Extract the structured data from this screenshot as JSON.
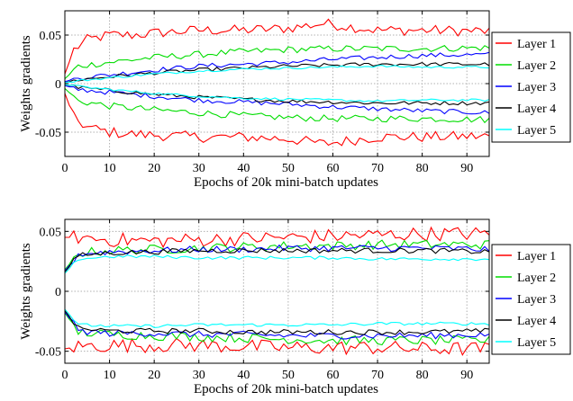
{
  "chart_data": [
    {
      "type": "line",
      "panel": "top",
      "xlabel": "Epochs of 20k mini-batch updates",
      "ylabel": "Weights gradients",
      "xlim": [
        0,
        95
      ],
      "ylim": [
        -0.075,
        0.075
      ],
      "xticks": [
        0,
        10,
        20,
        30,
        40,
        50,
        60,
        70,
        80,
        90
      ],
      "yticks": [
        {
          "v": -0.05,
          "label": "-0.05"
        },
        {
          "v": 0,
          "label": "0"
        },
        {
          "v": 0.05,
          "label": "0.05"
        }
      ],
      "grid": true,
      "legend_position": "right",
      "series": [
        {
          "name": "Layer 1",
          "color": "#ff0000",
          "upper": [
            [
              0,
              0.01
            ],
            [
              2,
              0.035
            ],
            [
              5,
              0.045
            ],
            [
              10,
              0.05
            ],
            [
              15,
              0.05
            ],
            [
              20,
              0.052
            ],
            [
              30,
              0.055
            ],
            [
              40,
              0.055
            ],
            [
              50,
              0.057
            ],
            [
              58,
              0.062
            ],
            [
              70,
              0.055
            ],
            [
              80,
              0.055
            ],
            [
              95,
              0.054
            ]
          ],
          "lower": [
            [
              0,
              -0.01
            ],
            [
              2,
              -0.035
            ],
            [
              5,
              -0.045
            ],
            [
              10,
              -0.05
            ],
            [
              15,
              -0.052
            ],
            [
              20,
              -0.053
            ],
            [
              30,
              -0.055
            ],
            [
              40,
              -0.055
            ],
            [
              50,
              -0.057
            ],
            [
              58,
              -0.062
            ],
            [
              70,
              -0.055
            ],
            [
              80,
              -0.055
            ],
            [
              95,
              -0.054
            ]
          ]
        },
        {
          "name": "Layer 2",
          "color": "#00dd00",
          "upper": [
            [
              0,
              0.005
            ],
            [
              3,
              0.018
            ],
            [
              10,
              0.022
            ],
            [
              20,
              0.027
            ],
            [
              30,
              0.03
            ],
            [
              40,
              0.033
            ],
            [
              50,
              0.035
            ],
            [
              60,
              0.036
            ],
            [
              70,
              0.036
            ],
            [
              80,
              0.036
            ],
            [
              95,
              0.037
            ]
          ],
          "lower": [
            [
              0,
              -0.005
            ],
            [
              3,
              -0.018
            ],
            [
              10,
              -0.023
            ],
            [
              20,
              -0.027
            ],
            [
              30,
              -0.03
            ],
            [
              40,
              -0.033
            ],
            [
              50,
              -0.035
            ],
            [
              60,
              -0.036
            ],
            [
              70,
              -0.036
            ],
            [
              80,
              -0.036
            ],
            [
              95,
              -0.037
            ]
          ]
        },
        {
          "name": "Layer 3",
          "color": "#0000ff",
          "upper": [
            [
              0,
              0.002
            ],
            [
              3,
              0.006
            ],
            [
              10,
              0.009
            ],
            [
              20,
              0.014
            ],
            [
              30,
              0.018
            ],
            [
              40,
              0.02
            ],
            [
              50,
              0.022
            ],
            [
              60,
              0.025
            ],
            [
              70,
              0.027
            ],
            [
              80,
              0.029
            ],
            [
              95,
              0.03
            ]
          ],
          "lower": [
            [
              0,
              -0.002
            ],
            [
              3,
              -0.006
            ],
            [
              10,
              -0.009
            ],
            [
              20,
              -0.013
            ],
            [
              30,
              -0.017
            ],
            [
              40,
              -0.019
            ],
            [
              50,
              -0.021
            ],
            [
              60,
              -0.024
            ],
            [
              70,
              -0.026
            ],
            [
              80,
              -0.028
            ],
            [
              95,
              -0.03
            ]
          ]
        },
        {
          "name": "Layer 4",
          "color": "#000000",
          "upper": [
            [
              0,
              0.001
            ],
            [
              3,
              0.004
            ],
            [
              10,
              0.007
            ],
            [
              20,
              0.011
            ],
            [
              30,
              0.014
            ],
            [
              40,
              0.016
            ],
            [
              50,
              0.018
            ],
            [
              60,
              0.019
            ],
            [
              70,
              0.02
            ],
            [
              80,
              0.02
            ],
            [
              95,
              0.02
            ]
          ],
          "lower": [
            [
              0,
              -0.001
            ],
            [
              3,
              -0.004
            ],
            [
              10,
              -0.007
            ],
            [
              20,
              -0.011
            ],
            [
              30,
              -0.014
            ],
            [
              40,
              -0.016
            ],
            [
              50,
              -0.018
            ],
            [
              60,
              -0.019
            ],
            [
              70,
              -0.02
            ],
            [
              80,
              -0.02
            ],
            [
              95,
              -0.02
            ]
          ]
        },
        {
          "name": "Layer 5",
          "color": "#00ffff",
          "upper": [
            [
              0,
              0.001
            ],
            [
              3,
              0.003
            ],
            [
              10,
              0.006
            ],
            [
              20,
              0.01
            ],
            [
              30,
              0.013
            ],
            [
              40,
              0.015
            ],
            [
              50,
              0.016
            ],
            [
              60,
              0.017
            ],
            [
              70,
              0.018
            ],
            [
              80,
              0.017
            ],
            [
              95,
              0.017
            ]
          ],
          "lower": [
            [
              0,
              -0.001
            ],
            [
              3,
              -0.003
            ],
            [
              10,
              -0.006
            ],
            [
              20,
              -0.01
            ],
            [
              30,
              -0.013
            ],
            [
              40,
              -0.015
            ],
            [
              50,
              -0.016
            ],
            [
              60,
              -0.017
            ],
            [
              70,
              -0.018
            ],
            [
              80,
              -0.017
            ],
            [
              95,
              -0.017
            ]
          ]
        }
      ]
    },
    {
      "type": "line",
      "panel": "bottom",
      "xlabel": "Epochs of 20k mini-batch updates",
      "ylabel": "Weights gradients",
      "xlim": [
        0,
        95
      ],
      "ylim": [
        -0.06,
        0.06
      ],
      "xticks": [
        0,
        10,
        20,
        30,
        40,
        50,
        60,
        70,
        80,
        90
      ],
      "yticks": [
        {
          "v": -0.05,
          "label": "-0.05"
        },
        {
          "v": 0,
          "label": "0"
        },
        {
          "v": 0.05,
          "label": "0.05"
        }
      ],
      "grid": true,
      "legend_position": "right",
      "series": [
        {
          "name": "Layer 1",
          "color": "#ff0000",
          "upper": [
            [
              0,
              0.045
            ],
            [
              3,
              0.045
            ],
            [
              10,
              0.043
            ],
            [
              20,
              0.042
            ],
            [
              30,
              0.043
            ],
            [
              40,
              0.044
            ],
            [
              50,
              0.045
            ],
            [
              60,
              0.046
            ],
            [
              70,
              0.047
            ],
            [
              80,
              0.048
            ],
            [
              95,
              0.048
            ]
          ],
          "lower": [
            [
              0,
              -0.048
            ],
            [
              3,
              -0.046
            ],
            [
              10,
              -0.045
            ],
            [
              20,
              -0.045
            ],
            [
              30,
              -0.045
            ],
            [
              40,
              -0.046
            ],
            [
              50,
              -0.047
            ],
            [
              60,
              -0.047
            ],
            [
              70,
              -0.047
            ],
            [
              80,
              -0.048
            ],
            [
              95,
              -0.048
            ]
          ]
        },
        {
          "name": "Layer 2",
          "color": "#00dd00",
          "upper": [
            [
              0,
              0.018
            ],
            [
              3,
              0.032
            ],
            [
              10,
              0.034
            ],
            [
              20,
              0.035
            ],
            [
              30,
              0.036
            ],
            [
              40,
              0.037
            ],
            [
              50,
              0.038
            ],
            [
              60,
              0.038
            ],
            [
              70,
              0.039
            ],
            [
              80,
              0.039
            ],
            [
              95,
              0.039
            ]
          ],
          "lower": [
            [
              0,
              -0.018
            ],
            [
              3,
              -0.034
            ],
            [
              10,
              -0.036
            ],
            [
              20,
              -0.037
            ],
            [
              30,
              -0.038
            ],
            [
              40,
              -0.039
            ],
            [
              50,
              -0.04
            ],
            [
              60,
              -0.041
            ],
            [
              70,
              -0.041
            ],
            [
              80,
              -0.041
            ],
            [
              95,
              -0.041
            ]
          ]
        },
        {
          "name": "Layer 3",
          "color": "#0000ff",
          "upper": [
            [
              0,
              0.017
            ],
            [
              3,
              0.031
            ],
            [
              10,
              0.033
            ],
            [
              20,
              0.034
            ],
            [
              30,
              0.035
            ],
            [
              40,
              0.035
            ],
            [
              50,
              0.036
            ],
            [
              60,
              0.036
            ],
            [
              70,
              0.036
            ],
            [
              80,
              0.036
            ],
            [
              95,
              0.035
            ]
          ],
          "lower": [
            [
              0,
              -0.017
            ],
            [
              3,
              -0.033
            ],
            [
              10,
              -0.035
            ],
            [
              20,
              -0.035
            ],
            [
              30,
              -0.036
            ],
            [
              40,
              -0.036
            ],
            [
              50,
              -0.037
            ],
            [
              60,
              -0.037
            ],
            [
              70,
              -0.037
            ],
            [
              80,
              -0.037
            ],
            [
              95,
              -0.036
            ]
          ]
        },
        {
          "name": "Layer 4",
          "color": "#000000",
          "upper": [
            [
              0,
              0.016
            ],
            [
              3,
              0.03
            ],
            [
              10,
              0.032
            ],
            [
              20,
              0.033
            ],
            [
              30,
              0.034
            ],
            [
              40,
              0.034
            ],
            [
              50,
              0.034
            ],
            [
              60,
              0.034
            ],
            [
              70,
              0.034
            ],
            [
              80,
              0.034
            ],
            [
              95,
              0.033
            ]
          ],
          "lower": [
            [
              0,
              -0.016
            ],
            [
              3,
              -0.031
            ],
            [
              10,
              -0.033
            ],
            [
              20,
              -0.033
            ],
            [
              30,
              -0.033
            ],
            [
              40,
              -0.034
            ],
            [
              50,
              -0.034
            ],
            [
              60,
              -0.034
            ],
            [
              70,
              -0.034
            ],
            [
              80,
              -0.034
            ],
            [
              95,
              -0.033
            ]
          ]
        },
        {
          "name": "Layer 5",
          "color": "#00ffff",
          "upper": [
            [
              0,
              0.015
            ],
            [
              3,
              0.027
            ],
            [
              10,
              0.029
            ],
            [
              20,
              0.029
            ],
            [
              30,
              0.028
            ],
            [
              40,
              0.028
            ],
            [
              50,
              0.028
            ],
            [
              60,
              0.028
            ],
            [
              70,
              0.027
            ],
            [
              80,
              0.027
            ],
            [
              95,
              0.027
            ]
          ],
          "lower": [
            [
              0,
              -0.015
            ],
            [
              3,
              -0.028
            ],
            [
              10,
              -0.029
            ],
            [
              20,
              -0.029
            ],
            [
              30,
              -0.028
            ],
            [
              40,
              -0.028
            ],
            [
              50,
              -0.028
            ],
            [
              60,
              -0.028
            ],
            [
              70,
              -0.027
            ],
            [
              80,
              -0.027
            ],
            [
              95,
              -0.027
            ]
          ]
        }
      ]
    }
  ]
}
